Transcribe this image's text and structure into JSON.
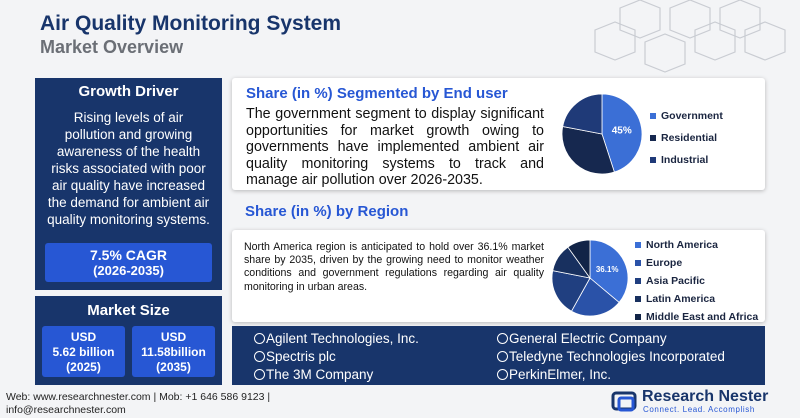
{
  "header": {
    "title": "Air Quality Monitoring System",
    "subtitle": "Market Overview"
  },
  "growth_driver": {
    "title": "Growth Driver",
    "text": "Rising levels of air pollution and growing awareness of the health risks associated with poor air quality have increased the demand for ambient air quality monitoring systems.",
    "cagr": "7.5% CAGR",
    "period": "(2026-2035)"
  },
  "market_size": {
    "title": "Market Size",
    "items": [
      {
        "currency": "USD",
        "value": "5.62 billion",
        "year": "(2025)"
      },
      {
        "currency": "USD",
        "value": "11.58billion",
        "year": "(2035)"
      }
    ]
  },
  "end_user_text": "The government segment to display significant opportunities for market growth owing to governments have implemented ambient air quality monitoring systems to track and manage air pollution over 2026-2035.",
  "region_text": "North America region is anticipated to hold over 36.1% market share by 2035, driven by the growing need to monitor weather conditions and government regulations regarding air quality monitoring in urban areas.",
  "chart_data": [
    {
      "type": "pie",
      "title": "Share (in %) Segmented by End user",
      "categories": [
        "Government",
        "Residential",
        "Industrial"
      ],
      "values": [
        45,
        33,
        22
      ],
      "value_labels": [
        "45%",
        null,
        null
      ],
      "colors": [
        "#3b6fd6",
        "#16284f",
        "#1f3a78"
      ]
    },
    {
      "type": "pie",
      "title": "Share (in %) by Region",
      "categories": [
        "North America",
        "Europe",
        "Asia Pacific",
        "Latin America",
        "Middle East and Africa"
      ],
      "values": [
        36.1,
        22,
        20,
        12,
        9.9
      ],
      "value_labels": [
        "36.1%",
        null,
        null,
        null,
        null
      ],
      "colors": [
        "#3b6fd6",
        "#2a52a8",
        "#203f80",
        "#18305f",
        "#122447"
      ]
    }
  ],
  "companies": [
    "Agilent Technologies, Inc.",
    "Spectris plc",
    "The 3M Company",
    "General Electric Company",
    "Teledyne Technologies Incorporated",
    "PerkinElmer, Inc."
  ],
  "footer": {
    "contact": "Web: www.researchnester.com | Mob: +1 646 586 9123 |",
    "email": "info@researchnester.com",
    "brand": "Research Nester",
    "tagline": "Connect. Lead. Accomplish"
  }
}
